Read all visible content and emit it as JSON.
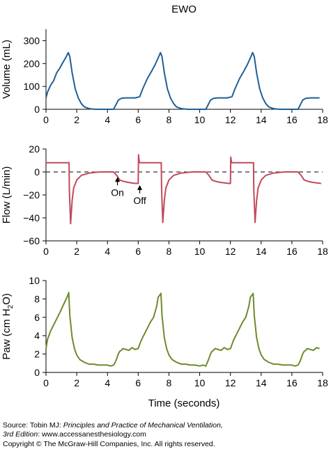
{
  "figure": {
    "title": "EWO",
    "x_axis_label": "Time (seconds)"
  },
  "chart_data": [
    {
      "type": "line",
      "ylabel": "Volume (mL)",
      "xlim": [
        0,
        18
      ],
      "ylim": [
        0,
        350
      ],
      "xticks": [
        0,
        2,
        4,
        6,
        8,
        10,
        12,
        14,
        16,
        18
      ],
      "yticks": [
        0,
        100,
        200,
        300
      ],
      "color": "#1f5f97",
      "series": [
        {
          "x": [
            0,
            0.1,
            0.3,
            0.5,
            0.7,
            0.9,
            1.1,
            1.3,
            1.45,
            1.55,
            1.7,
            1.9,
            2.1,
            2.3,
            2.5,
            2.8,
            3.2,
            3.8,
            4.4,
            4.55,
            4.7,
            4.9,
            5.2,
            5.5,
            5.8,
            6.1,
            6.3,
            6.6,
            6.9,
            7.1,
            7.3,
            7.45,
            7.55,
            7.7,
            7.9,
            8.1,
            8.3,
            8.5,
            8.8,
            9.2,
            9.8,
            10.4,
            10.55,
            10.7,
            10.9,
            11.2,
            11.5,
            11.8,
            12.1,
            12.3,
            12.6,
            12.9,
            13.1,
            13.3,
            13.45,
            13.55,
            13.7,
            13.9,
            14.1,
            14.3,
            14.5,
            14.8,
            15.2,
            15.8,
            16.4,
            16.55,
            16.7,
            16.9,
            17.2,
            17.5,
            17.8
          ],
          "y": [
            50,
            75,
            105,
            125,
            160,
            180,
            205,
            228,
            248,
            230,
            160,
            90,
            50,
            25,
            10,
            3,
            0,
            0,
            0,
            20,
            40,
            48,
            50,
            50,
            50,
            55,
            90,
            135,
            170,
            195,
            225,
            248,
            230,
            160,
            90,
            50,
            25,
            10,
            3,
            0,
            0,
            0,
            20,
            40,
            48,
            50,
            50,
            50,
            55,
            90,
            135,
            170,
            195,
            225,
            248,
            230,
            160,
            90,
            50,
            25,
            10,
            3,
            0,
            0,
            0,
            20,
            40,
            48,
            50,
            50,
            50
          ]
        }
      ]
    },
    {
      "type": "line",
      "ylabel": "Flow (L/min)",
      "xlim": [
        0,
        18
      ],
      "ylim": [
        -60,
        20
      ],
      "xticks": [
        0,
        2,
        4,
        6,
        8,
        10,
        12,
        14,
        16,
        18
      ],
      "yticks": [
        20,
        0,
        -20,
        -40,
        -60
      ],
      "color": "#c04a5a",
      "reference_line": 0,
      "annotations": [
        {
          "text": "On",
          "x": 4.65,
          "y": -2
        },
        {
          "text": "Off",
          "x": 6.1,
          "y": -9
        }
      ],
      "series": [
        {
          "x": [
            0,
            1.5,
            1.52,
            1.6,
            1.7,
            1.8,
            2.0,
            2.3,
            2.8,
            3.5,
            4.4,
            4.6,
            4.8,
            5.0,
            5.3,
            5.8,
            6.0,
            6.02,
            6.08,
            6.2,
            7.5,
            7.52,
            7.6,
            7.7,
            7.8,
            8.0,
            8.3,
            8.8,
            9.5,
            10.4,
            10.6,
            10.8,
            11.0,
            11.3,
            11.9,
            12.0,
            12.02,
            12.08,
            12.2,
            13.5,
            13.52,
            13.6,
            13.7,
            13.8,
            14.0,
            14.3,
            14.8,
            15.5,
            16.4,
            16.6,
            16.8,
            17.0,
            17.3,
            17.9
          ],
          "y": [
            8,
            8,
            -15,
            -45,
            -25,
            -14,
            -7,
            -3,
            -1,
            0,
            0,
            -3,
            -7,
            -8,
            -9,
            -10,
            -10,
            15,
            8,
            8,
            8,
            -15,
            -44,
            -25,
            -14,
            -7,
            -3,
            -1,
            0,
            0,
            -3,
            -7,
            -8,
            -9,
            -10,
            -10,
            13,
            8,
            8,
            8,
            -15,
            -44,
            -25,
            -14,
            -7,
            -3,
            -1,
            0,
            0,
            -3,
            -7,
            -8,
            -9,
            -10
          ]
        }
      ]
    },
    {
      "type": "line",
      "ylabel": "Paw (cm H2O)",
      "xlim": [
        0,
        18
      ],
      "ylim": [
        0,
        10
      ],
      "xticks": [
        0,
        2,
        4,
        6,
        8,
        10,
        12,
        14,
        16,
        18
      ],
      "yticks": [
        0,
        2,
        4,
        6,
        8,
        10
      ],
      "color": "#6e8a2c",
      "series": [
        {
          "x": [
            0,
            0.1,
            0.3,
            0.6,
            0.9,
            1.2,
            1.4,
            1.48,
            1.55,
            1.7,
            1.85,
            2.0,
            2.2,
            2.5,
            2.8,
            3.1,
            3.4,
            3.7,
            4.0,
            4.2,
            4.4,
            4.5,
            4.6,
            4.7,
            4.8,
            4.9,
            5.0,
            5.2,
            5.4,
            5.6,
            5.8,
            6.0,
            6.2,
            6.5,
            6.8,
            7.0,
            7.2,
            7.3,
            7.4,
            7.48,
            7.55,
            7.7,
            7.85,
            8.0,
            8.2,
            8.5,
            8.8,
            9.1,
            9.4,
            9.7,
            10.0,
            10.2,
            10.4,
            10.5,
            10.6,
            10.7,
            10.8,
            10.9,
            11.0,
            11.2,
            11.4,
            11.6,
            11.8,
            12.0,
            12.2,
            12.5,
            12.8,
            13.0,
            13.2,
            13.3,
            13.4,
            13.48,
            13.55,
            13.7,
            13.85,
            14.0,
            14.2,
            14.5,
            14.8,
            15.1,
            15.4,
            15.7,
            16.0,
            16.2,
            16.4,
            16.5,
            16.6,
            16.7,
            16.8,
            16.9,
            17.0,
            17.2,
            17.4,
            17.6,
            17.8
          ],
          "y": [
            2.6,
            3.6,
            4.5,
            5.5,
            6.5,
            7.6,
            8.3,
            8.7,
            6.2,
            3.8,
            2.6,
            1.9,
            1.4,
            1.1,
            0.9,
            0.9,
            0.8,
            0.8,
            0.8,
            0.7,
            0.8,
            1.1,
            1.5,
            2.0,
            2.3,
            2.4,
            2.6,
            2.5,
            2.4,
            2.7,
            2.5,
            2.6,
            3.5,
            4.5,
            5.5,
            6.0,
            7.2,
            8.2,
            8.4,
            8.6,
            6.2,
            3.8,
            2.6,
            1.9,
            1.4,
            1.1,
            0.9,
            0.9,
            0.8,
            0.8,
            0.7,
            0.8,
            0.7,
            1.1,
            1.5,
            2.0,
            2.3,
            2.4,
            2.6,
            2.5,
            2.4,
            2.7,
            2.5,
            2.6,
            3.5,
            4.5,
            5.5,
            6.0,
            7.2,
            8.2,
            8.4,
            8.6,
            6.2,
            3.8,
            2.6,
            1.9,
            1.4,
            1.1,
            0.9,
            0.9,
            0.8,
            0.8,
            0.8,
            0.7,
            0.8,
            1.1,
            1.5,
            2.0,
            2.3,
            2.4,
            2.6,
            2.5,
            2.4,
            2.7,
            2.6
          ]
        }
      ]
    }
  ],
  "footer": {
    "source_line1_prefix": "Source: Tobin MJ: ",
    "source_line1_title": "Principles and Practice of Mechanical Ventilation,",
    "source_line2_edition": "3rd Edition",
    "source_line2_rest": ": www.accessanesthesiology.com",
    "copyright": "Copyright © The McGraw-Hill Companies, Inc. All rights reserved."
  }
}
